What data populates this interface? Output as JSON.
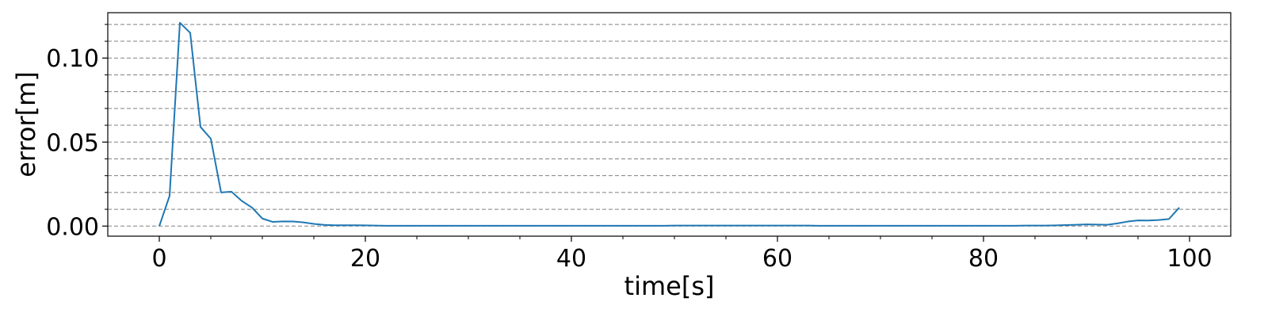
{
  "chart_data": {
    "type": "line",
    "xlabel": "time[s]",
    "ylabel": "error[m]",
    "xlim": [
      -5,
      104
    ],
    "ylim": [
      -0.006,
      0.127
    ],
    "x_ticks": [
      0,
      20,
      40,
      60,
      80,
      100
    ],
    "x_tick_labels": [
      "0",
      "20",
      "40",
      "60",
      "80",
      "100"
    ],
    "y_ticks": [
      0.0,
      0.05,
      0.1
    ],
    "y_tick_labels": [
      "0.00",
      "0.05",
      "0.10"
    ],
    "y_minor_ticks": [
      0.01,
      0.02,
      0.03,
      0.04,
      0.06,
      0.07,
      0.08,
      0.09,
      0.11,
      0.12
    ],
    "x_minor_step": 5,
    "grid": "horizontal dashed at major and minor y ticks",
    "line_color": "#1f77b4",
    "grid_color": "#808080",
    "series": [
      {
        "x": [
          0,
          1,
          2,
          3,
          4,
          5,
          6,
          7,
          8,
          9,
          10,
          11,
          12,
          13,
          14,
          15,
          16,
          17,
          18,
          19,
          20,
          21,
          22,
          23,
          24,
          25,
          26,
          27,
          28,
          29,
          30,
          31,
          32,
          33,
          34,
          35,
          36,
          37,
          38,
          39,
          40,
          41,
          42,
          43,
          44,
          45,
          46,
          47,
          48,
          49,
          50,
          51,
          52,
          53,
          54,
          55,
          56,
          57,
          58,
          59,
          60,
          61,
          62,
          63,
          64,
          65,
          66,
          67,
          68,
          69,
          70,
          71,
          72,
          73,
          74,
          75,
          76,
          77,
          78,
          79,
          80,
          81,
          82,
          83,
          84,
          85,
          86,
          87,
          88,
          89,
          90,
          91,
          92,
          93,
          94,
          95,
          96,
          97,
          98,
          99
        ],
        "values": [
          0.0,
          0.018,
          0.121,
          0.115,
          0.059,
          0.052,
          0.02,
          0.0205,
          0.015,
          0.011,
          0.0045,
          0.0025,
          0.0028,
          0.0027,
          0.0022,
          0.0013,
          0.0007,
          0.0005,
          0.0005,
          0.0005,
          0.0004,
          0.0003,
          0.0002,
          0.0002,
          0.0002,
          0.0002,
          0.0002,
          0.0002,
          0.0002,
          0.0002,
          0.0002,
          0.0002,
          0.0002,
          0.0002,
          0.0002,
          0.0002,
          0.0002,
          0.0002,
          0.0002,
          0.0002,
          0.0002,
          0.0002,
          0.0002,
          0.0002,
          0.0002,
          0.0002,
          0.0002,
          0.0002,
          0.0002,
          0.0002,
          0.0003,
          0.0003,
          0.0003,
          0.0003,
          0.0003,
          0.0003,
          0.0003,
          0.0003,
          0.0003,
          0.0003,
          0.0003,
          0.0003,
          0.0003,
          0.0003,
          0.0002,
          0.0002,
          0.0002,
          0.0002,
          0.0002,
          0.0002,
          0.0002,
          0.0002,
          0.0002,
          0.0002,
          0.0002,
          0.0002,
          0.0002,
          0.0002,
          0.0002,
          0.0002,
          0.0002,
          0.0002,
          0.0002,
          0.0002,
          0.0003,
          0.0003,
          0.0003,
          0.0004,
          0.0006,
          0.0008,
          0.001,
          0.0009,
          0.0008,
          0.0016,
          0.0027,
          0.0034,
          0.0033,
          0.0036,
          0.0042,
          0.011
        ]
      }
    ]
  }
}
